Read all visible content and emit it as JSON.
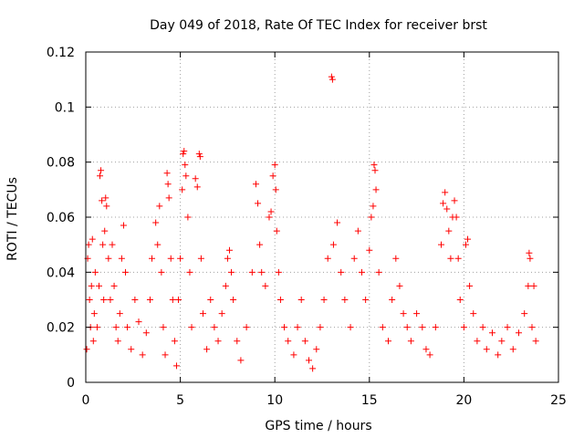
{
  "chart_data": {
    "type": "scatter",
    "title": "Day 049 of 2018, Rate Of TEC Index for receiver brst",
    "xlabel": "GPS time / hours",
    "ylabel": "ROTI / TECUs",
    "xlim": [
      0,
      25
    ],
    "ylim": [
      0,
      0.12
    ],
    "xticks": [
      0,
      5,
      10,
      15,
      20,
      25
    ],
    "yticks": [
      0,
      0.02,
      0.04,
      0.06,
      0.08,
      0.1,
      0.12
    ],
    "xtick_labels": [
      "0",
      "5",
      "10",
      "15",
      "20",
      "25"
    ],
    "ytick_labels": [
      "0",
      "0.02",
      "0.04",
      "0.06",
      "0.08",
      "0.1",
      "0.12"
    ],
    "grid": true,
    "marker": "+",
    "color": "#ff0000",
    "series": [
      {
        "name": "ROTI",
        "points": [
          [
            0.05,
            0.012
          ],
          [
            0.1,
            0.045
          ],
          [
            0.15,
            0.05
          ],
          [
            0.2,
            0.03
          ],
          [
            0.25,
            0.02
          ],
          [
            0.3,
            0.035
          ],
          [
            0.35,
            0.052
          ],
          [
            0.4,
            0.015
          ],
          [
            0.45,
            0.025
          ],
          [
            0.5,
            0.04
          ],
          [
            0.6,
            0.02
          ],
          [
            0.7,
            0.035
          ],
          [
            0.75,
            0.075
          ],
          [
            0.8,
            0.077
          ],
          [
            0.85,
            0.066
          ],
          [
            0.9,
            0.05
          ],
          [
            0.95,
            0.03
          ],
          [
            1.0,
            0.055
          ],
          [
            1.05,
            0.067
          ],
          [
            1.1,
            0.064
          ],
          [
            1.2,
            0.045
          ],
          [
            1.3,
            0.03
          ],
          [
            1.4,
            0.05
          ],
          [
            1.5,
            0.035
          ],
          [
            1.6,
            0.02
          ],
          [
            1.7,
            0.015
          ],
          [
            1.8,
            0.025
          ],
          [
            1.9,
            0.045
          ],
          [
            2.0,
            0.057
          ],
          [
            2.1,
            0.04
          ],
          [
            2.2,
            0.02
          ],
          [
            2.4,
            0.012
          ],
          [
            2.6,
            0.03
          ],
          [
            2.8,
            0.022
          ],
          [
            3.0,
            0.01
          ],
          [
            3.2,
            0.018
          ],
          [
            3.4,
            0.03
          ],
          [
            3.5,
            0.045
          ],
          [
            3.7,
            0.058
          ],
          [
            3.8,
            0.05
          ],
          [
            3.9,
            0.064
          ],
          [
            4.0,
            0.04
          ],
          [
            4.1,
            0.02
          ],
          [
            4.2,
            0.01
          ],
          [
            4.3,
            0.076
          ],
          [
            4.35,
            0.072
          ],
          [
            4.4,
            0.067
          ],
          [
            4.5,
            0.045
          ],
          [
            4.6,
            0.03
          ],
          [
            4.7,
            0.015
          ],
          [
            4.8,
            0.006
          ],
          [
            4.9,
            0.03
          ],
          [
            5.0,
            0.045
          ],
          [
            5.1,
            0.07
          ],
          [
            5.15,
            0.083
          ],
          [
            5.2,
            0.084
          ],
          [
            5.25,
            0.079
          ],
          [
            5.3,
            0.075
          ],
          [
            5.4,
            0.06
          ],
          [
            5.5,
            0.04
          ],
          [
            5.6,
            0.02
          ],
          [
            5.8,
            0.074
          ],
          [
            5.9,
            0.071
          ],
          [
            6.0,
            0.083
          ],
          [
            6.05,
            0.082
          ],
          [
            6.1,
            0.045
          ],
          [
            6.2,
            0.025
          ],
          [
            6.4,
            0.012
          ],
          [
            6.6,
            0.03
          ],
          [
            6.8,
            0.02
          ],
          [
            7.0,
            0.015
          ],
          [
            7.2,
            0.025
          ],
          [
            7.4,
            0.035
          ],
          [
            7.5,
            0.045
          ],
          [
            7.6,
            0.048
          ],
          [
            7.7,
            0.04
          ],
          [
            7.8,
            0.03
          ],
          [
            8.0,
            0.015
          ],
          [
            8.2,
            0.008
          ],
          [
            8.5,
            0.02
          ],
          [
            8.8,
            0.04
          ],
          [
            9.0,
            0.072
          ],
          [
            9.1,
            0.065
          ],
          [
            9.2,
            0.05
          ],
          [
            9.3,
            0.04
          ],
          [
            9.5,
            0.035
          ],
          [
            9.7,
            0.06
          ],
          [
            9.8,
            0.062
          ],
          [
            9.9,
            0.075
          ],
          [
            10.0,
            0.079
          ],
          [
            10.05,
            0.07
          ],
          [
            10.1,
            0.055
          ],
          [
            10.2,
            0.04
          ],
          [
            10.3,
            0.03
          ],
          [
            10.5,
            0.02
          ],
          [
            10.7,
            0.015
          ],
          [
            11.0,
            0.01
          ],
          [
            11.2,
            0.02
          ],
          [
            11.4,
            0.03
          ],
          [
            11.6,
            0.015
          ],
          [
            11.8,
            0.008
          ],
          [
            12.0,
            0.005
          ],
          [
            12.2,
            0.012
          ],
          [
            12.4,
            0.02
          ],
          [
            12.6,
            0.03
          ],
          [
            12.8,
            0.045
          ],
          [
            13.0,
            0.111
          ],
          [
            13.05,
            0.11
          ],
          [
            13.1,
            0.05
          ],
          [
            13.3,
            0.058
          ],
          [
            13.5,
            0.04
          ],
          [
            13.7,
            0.03
          ],
          [
            14.0,
            0.02
          ],
          [
            14.2,
            0.045
          ],
          [
            14.4,
            0.055
          ],
          [
            14.6,
            0.04
          ],
          [
            14.8,
            0.03
          ],
          [
            15.0,
            0.048
          ],
          [
            15.1,
            0.06
          ],
          [
            15.2,
            0.064
          ],
          [
            15.25,
            0.079
          ],
          [
            15.3,
            0.077
          ],
          [
            15.35,
            0.07
          ],
          [
            15.5,
            0.04
          ],
          [
            15.7,
            0.02
          ],
          [
            16.0,
            0.015
          ],
          [
            16.2,
            0.03
          ],
          [
            16.4,
            0.045
          ],
          [
            16.6,
            0.035
          ],
          [
            16.8,
            0.025
          ],
          [
            17.0,
            0.02
          ],
          [
            17.2,
            0.015
          ],
          [
            17.5,
            0.025
          ],
          [
            17.8,
            0.02
          ],
          [
            18.0,
            0.012
          ],
          [
            18.2,
            0.01
          ],
          [
            18.5,
            0.02
          ],
          [
            18.8,
            0.05
          ],
          [
            18.9,
            0.065
          ],
          [
            19.0,
            0.069
          ],
          [
            19.1,
            0.063
          ],
          [
            19.2,
            0.055
          ],
          [
            19.3,
            0.045
          ],
          [
            19.4,
            0.06
          ],
          [
            19.5,
            0.066
          ],
          [
            19.6,
            0.06
          ],
          [
            19.7,
            0.045
          ],
          [
            19.8,
            0.03
          ],
          [
            20.0,
            0.02
          ],
          [
            20.1,
            0.05
          ],
          [
            20.2,
            0.052
          ],
          [
            20.3,
            0.035
          ],
          [
            20.5,
            0.025
          ],
          [
            20.7,
            0.015
          ],
          [
            21.0,
            0.02
          ],
          [
            21.2,
            0.012
          ],
          [
            21.5,
            0.018
          ],
          [
            21.8,
            0.01
          ],
          [
            22.0,
            0.015
          ],
          [
            22.3,
            0.02
          ],
          [
            22.6,
            0.012
          ],
          [
            22.9,
            0.018
          ],
          [
            23.2,
            0.025
          ],
          [
            23.4,
            0.035
          ],
          [
            23.45,
            0.047
          ],
          [
            23.5,
            0.045
          ],
          [
            23.6,
            0.02
          ],
          [
            23.7,
            0.035
          ],
          [
            23.8,
            0.015
          ]
        ]
      }
    ]
  }
}
